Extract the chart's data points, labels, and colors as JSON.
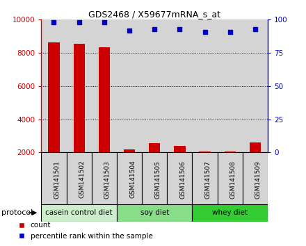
{
  "title": "GDS2468 / X59677mRNA_s_at",
  "samples": [
    "GSM141501",
    "GSM141502",
    "GSM141503",
    "GSM141504",
    "GSM141505",
    "GSM141506",
    "GSM141507",
    "GSM141508",
    "GSM141509"
  ],
  "counts": [
    8650,
    8550,
    8350,
    2200,
    2580,
    2400,
    2050,
    2050,
    2600
  ],
  "percentile_ranks": [
    98,
    98,
    98,
    92,
    93,
    93,
    91,
    91,
    93
  ],
  "bar_color": "#cc0000",
  "dot_color": "#0000cc",
  "ylim_left": [
    2000,
    10000
  ],
  "ylim_right": [
    0,
    100
  ],
  "yticks_left": [
    2000,
    4000,
    6000,
    8000,
    10000
  ],
  "yticks_right": [
    0,
    25,
    50,
    75,
    100
  ],
  "grid_lines": [
    4000,
    6000,
    8000
  ],
  "legend_count_label": "count",
  "legend_pct_label": "percentile rank within the sample",
  "protocol_label": "protocol",
  "cell_bg_color": "#d4d4d4",
  "plot_bg_color": "#ffffff",
  "group_info": [
    {
      "label": "casein control diet",
      "start": 0,
      "end": 2,
      "color": "#cceecc"
    },
    {
      "label": "soy diet",
      "start": 3,
      "end": 5,
      "color": "#88dd88"
    },
    {
      "label": "whey diet",
      "start": 6,
      "end": 8,
      "color": "#33cc33"
    }
  ]
}
